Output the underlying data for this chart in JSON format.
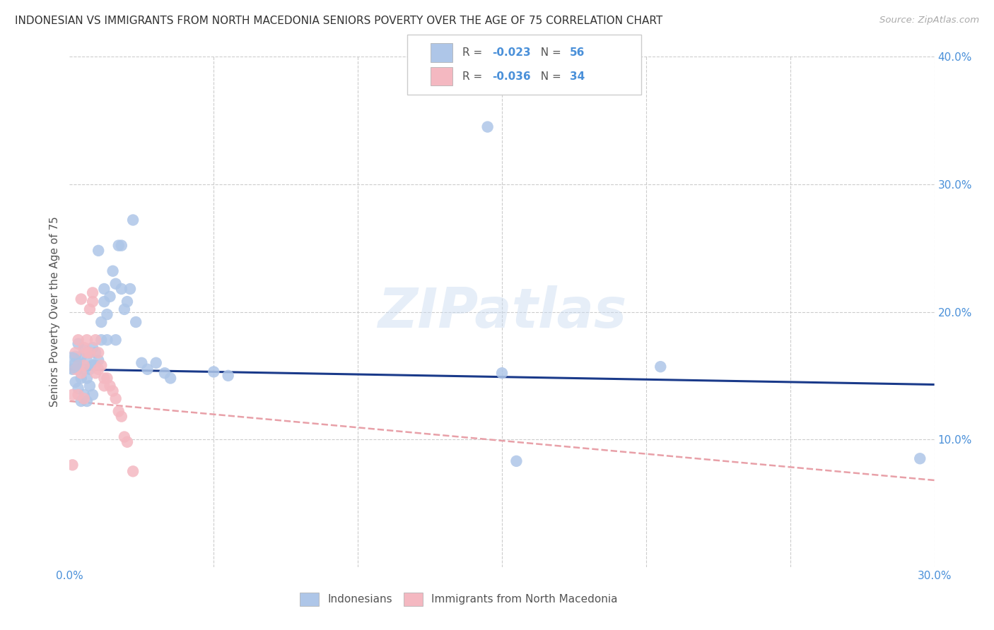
{
  "title": "INDONESIAN VS IMMIGRANTS FROM NORTH MACEDONIA SENIORS POVERTY OVER THE AGE OF 75 CORRELATION CHART",
  "source": "Source: ZipAtlas.com",
  "ylabel": "Seniors Poverty Over the Age of 75",
  "xlim": [
    0,
    0.3
  ],
  "ylim": [
    0,
    0.4
  ],
  "grid_color": "#cccccc",
  "background_color": "#ffffff",
  "indonesian_color": "#aec6e8",
  "macedonian_color": "#f4b8c1",
  "indonesian_line_color": "#1a3a8a",
  "macedonian_line_color": "#e8a0a8",
  "tick_color": "#4a90d9",
  "label_color": "#555555",
  "legend_label_bottom_1": "Indonesians",
  "legend_label_bottom_2": "Immigrants from North Macedonia",
  "watermark": "ZIPatlas",
  "indonesian_x": [
    0.001,
    0.002,
    0.002,
    0.002,
    0.003,
    0.003,
    0.003,
    0.004,
    0.004,
    0.004,
    0.005,
    0.005,
    0.005,
    0.006,
    0.006,
    0.006,
    0.007,
    0.007,
    0.007,
    0.008,
    0.008,
    0.008,
    0.009,
    0.009,
    0.01,
    0.01,
    0.011,
    0.011,
    0.012,
    0.012,
    0.013,
    0.013,
    0.014,
    0.015,
    0.016,
    0.016,
    0.017,
    0.018,
    0.018,
    0.019,
    0.02,
    0.021,
    0.022,
    0.023,
    0.025,
    0.027,
    0.03,
    0.033,
    0.035,
    0.05,
    0.055,
    0.145,
    0.15,
    0.155,
    0.205,
    0.295
  ],
  "indonesian_y": [
    0.155,
    0.165,
    0.145,
    0.16,
    0.175,
    0.155,
    0.14,
    0.165,
    0.148,
    0.13,
    0.17,
    0.155,
    0.135,
    0.162,
    0.148,
    0.13,
    0.168,
    0.155,
    0.142,
    0.172,
    0.158,
    0.135,
    0.168,
    0.158,
    0.248,
    0.162,
    0.192,
    0.178,
    0.218,
    0.208,
    0.198,
    0.178,
    0.212,
    0.232,
    0.222,
    0.178,
    0.252,
    0.218,
    0.252,
    0.202,
    0.208,
    0.218,
    0.272,
    0.192,
    0.16,
    0.155,
    0.16,
    0.152,
    0.148,
    0.153,
    0.15,
    0.345,
    0.152,
    0.083,
    0.157,
    0.085
  ],
  "macedonian_x": [
    0.001,
    0.001,
    0.002,
    0.002,
    0.003,
    0.003,
    0.003,
    0.004,
    0.004,
    0.005,
    0.005,
    0.005,
    0.006,
    0.006,
    0.007,
    0.007,
    0.008,
    0.008,
    0.009,
    0.009,
    0.01,
    0.01,
    0.011,
    0.012,
    0.012,
    0.013,
    0.014,
    0.015,
    0.016,
    0.017,
    0.018,
    0.019,
    0.02,
    0.022
  ],
  "macedonian_y": [
    0.08,
    0.135,
    0.155,
    0.168,
    0.178,
    0.158,
    0.135,
    0.152,
    0.21,
    0.172,
    0.158,
    0.132,
    0.168,
    0.178,
    0.202,
    0.168,
    0.215,
    0.208,
    0.178,
    0.152,
    0.168,
    0.155,
    0.158,
    0.142,
    0.148,
    0.148,
    0.142,
    0.138,
    0.132,
    0.122,
    0.118,
    0.102,
    0.098,
    0.075
  ],
  "indo_line_x0": 0.0,
  "indo_line_x1": 0.3,
  "indo_line_y0": 0.155,
  "indo_line_y1": 0.143,
  "mac_line_x0": 0.0,
  "mac_line_x1": 0.3,
  "mac_line_y0": 0.13,
  "mac_line_y1": 0.068
}
